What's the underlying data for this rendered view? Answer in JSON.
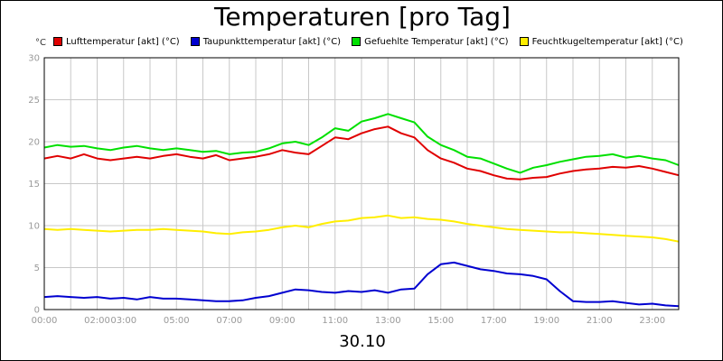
{
  "chart_data": {
    "type": "line",
    "title": "Temperaturen [pro Tag]",
    "y_unit": "°C",
    "xlabel": "30.10",
    "ylim": [
      0,
      30
    ],
    "yticks": [
      0,
      5,
      10,
      15,
      20,
      25,
      30
    ],
    "xlim": [
      0,
      24
    ],
    "xticks": [
      {
        "value": 0,
        "label": "00:00"
      },
      {
        "value": 2,
        "label": "02:00"
      },
      {
        "value": 3,
        "label": "03:00"
      },
      {
        "value": 5,
        "label": "05:00"
      },
      {
        "value": 7,
        "label": "07:00"
      },
      {
        "value": 9,
        "label": "09:00"
      },
      {
        "value": 11,
        "label": "11:00"
      },
      {
        "value": 13,
        "label": "13:00"
      },
      {
        "value": 15,
        "label": "15:00"
      },
      {
        "value": 17,
        "label": "17:00"
      },
      {
        "value": 19,
        "label": "19:00"
      },
      {
        "value": 21,
        "label": "21:00"
      },
      {
        "value": 23,
        "label": "23:00"
      }
    ],
    "grid": true,
    "legend_position": "top",
    "series": [
      {
        "name": "Lufttemperatur [akt] (°C)",
        "color": "#e00000",
        "x": [
          0,
          0.5,
          1,
          1.5,
          2,
          2.5,
          3,
          3.5,
          4,
          4.5,
          5,
          5.5,
          6,
          6.5,
          7,
          7.5,
          8,
          8.5,
          9,
          9.5,
          10,
          10.5,
          11,
          11.5,
          12,
          12.5,
          13,
          13.5,
          14,
          14.5,
          15,
          15.5,
          16,
          16.5,
          17,
          17.5,
          18,
          18.5,
          19,
          19.5,
          20,
          20.5,
          21,
          21.5,
          22,
          22.5,
          23,
          23.5,
          24
        ],
        "y": [
          18,
          18.3,
          18,
          18.5,
          18,
          17.8,
          18,
          18.2,
          18,
          18.3,
          18.5,
          18.2,
          18,
          18.4,
          17.8,
          18,
          18.2,
          18.5,
          19,
          18.7,
          18.5,
          19.5,
          20.5,
          20.3,
          21,
          21.5,
          21.8,
          21,
          20.5,
          19,
          18,
          17.5,
          16.8,
          16.5,
          16,
          15.6,
          15.5,
          15.7,
          15.8,
          16.2,
          16.5,
          16.7,
          16.8,
          17,
          16.9,
          17.1,
          16.8,
          16.4,
          16
        ]
      },
      {
        "name": "Taupunkttemperatur [akt] (°C)",
        "color": "#0000d0",
        "x": [
          0,
          0.5,
          1,
          1.5,
          2,
          2.5,
          3,
          3.5,
          4,
          4.5,
          5,
          5.5,
          6,
          6.5,
          7,
          7.5,
          8,
          8.5,
          9,
          9.5,
          10,
          10.5,
          11,
          11.5,
          12,
          12.5,
          13,
          13.5,
          14,
          14.5,
          15,
          15.5,
          16,
          16.5,
          17,
          17.5,
          18,
          18.5,
          19,
          19.5,
          20,
          20.5,
          21,
          21.5,
          22,
          22.5,
          23,
          23.5,
          24
        ],
        "y": [
          1.5,
          1.6,
          1.5,
          1.4,
          1.5,
          1.3,
          1.4,
          1.2,
          1.5,
          1.3,
          1.3,
          1.2,
          1.1,
          1.0,
          1.0,
          1.1,
          1.4,
          1.6,
          2.0,
          2.4,
          2.3,
          2.1,
          2.0,
          2.2,
          2.1,
          2.3,
          2.0,
          2.4,
          2.5,
          4.2,
          5.4,
          5.6,
          5.2,
          4.8,
          4.6,
          4.3,
          4.2,
          4.0,
          3.6,
          2.2,
          1.0,
          0.9,
          0.9,
          1.0,
          0.8,
          0.6,
          0.7,
          0.5,
          0.4
        ]
      },
      {
        "name": "Gefuehlte Temperatur [akt] (°C)",
        "color": "#00e000",
        "x": [
          0,
          0.5,
          1,
          1.5,
          2,
          2.5,
          3,
          3.5,
          4,
          4.5,
          5,
          5.5,
          6,
          6.5,
          7,
          7.5,
          8,
          8.5,
          9,
          9.5,
          10,
          10.5,
          11,
          11.5,
          12,
          12.5,
          13,
          13.5,
          14,
          14.5,
          15,
          15.5,
          16,
          16.5,
          17,
          17.5,
          18,
          18.5,
          19,
          19.5,
          20,
          20.5,
          21,
          21.5,
          22,
          22.5,
          23,
          23.5,
          24
        ],
        "y": [
          19.3,
          19.6,
          19.4,
          19.5,
          19.2,
          19.0,
          19.3,
          19.5,
          19.2,
          19.0,
          19.2,
          19.0,
          18.8,
          18.9,
          18.5,
          18.7,
          18.8,
          19.2,
          19.8,
          20.0,
          19.6,
          20.5,
          21.6,
          21.3,
          22.4,
          22.8,
          23.3,
          22.8,
          22.3,
          20.6,
          19.6,
          19.0,
          18.2,
          18.0,
          17.4,
          16.8,
          16.3,
          16.9,
          17.2,
          17.6,
          17.9,
          18.2,
          18.3,
          18.5,
          18.1,
          18.3,
          18.0,
          17.8,
          17.2
        ]
      },
      {
        "name": "Feuchtkugeltemperatur [akt] (°C)",
        "color": "#ffee00",
        "x": [
          0,
          0.5,
          1,
          1.5,
          2,
          2.5,
          3,
          3.5,
          4,
          4.5,
          5,
          5.5,
          6,
          6.5,
          7,
          7.5,
          8,
          8.5,
          9,
          9.5,
          10,
          10.5,
          11,
          11.5,
          12,
          12.5,
          13,
          13.5,
          14,
          14.5,
          15,
          15.5,
          16,
          16.5,
          17,
          17.5,
          18,
          18.5,
          19,
          19.5,
          20,
          20.5,
          21,
          21.5,
          22,
          22.5,
          23,
          23.5,
          24
        ],
        "y": [
          9.6,
          9.5,
          9.6,
          9.5,
          9.4,
          9.3,
          9.4,
          9.5,
          9.5,
          9.6,
          9.5,
          9.4,
          9.3,
          9.1,
          9.0,
          9.2,
          9.3,
          9.5,
          9.8,
          10.0,
          9.8,
          10.2,
          10.5,
          10.6,
          10.9,
          11.0,
          11.2,
          10.9,
          11.0,
          10.8,
          10.7,
          10.5,
          10.2,
          10.0,
          9.8,
          9.6,
          9.5,
          9.4,
          9.3,
          9.2,
          9.2,
          9.1,
          9.0,
          8.9,
          8.8,
          8.7,
          8.6,
          8.4,
          8.1
        ]
      }
    ]
  }
}
